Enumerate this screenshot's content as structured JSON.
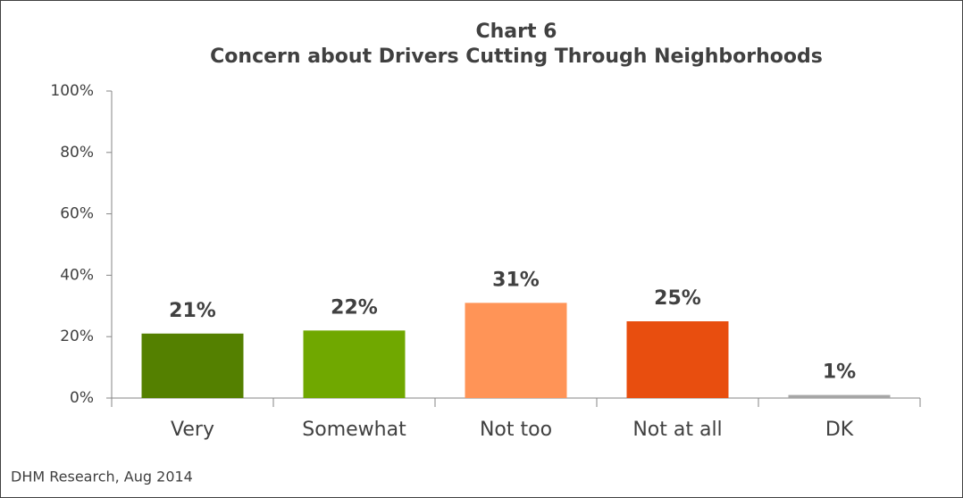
{
  "chart_data": {
    "type": "bar",
    "title": "Chart 6",
    "subtitle": "Concern about Drivers Cutting Through Neighborhoods",
    "categories": [
      "Very",
      "Somewhat",
      "Not too",
      "Not at all",
      "DK"
    ],
    "values": [
      21,
      22,
      31,
      25,
      1
    ],
    "value_labels": [
      "21%",
      "22%",
      "31%",
      "25%",
      "1%"
    ],
    "colors": [
      "#548000",
      "#70a800",
      "#ff9457",
      "#e84e0f",
      "#a6a6a6"
    ],
    "ylim": [
      0,
      100
    ],
    "yticks": [
      {
        "value": 0,
        "label": "0%"
      },
      {
        "value": 20,
        "label": "20%"
      },
      {
        "value": 40,
        "label": "40%"
      },
      {
        "value": 60,
        "label": "60%"
      },
      {
        "value": 80,
        "label": "80%"
      },
      {
        "value": 100,
        "label": "100%"
      }
    ],
    "grid": false,
    "source": "DHM Research, Aug 2014"
  }
}
